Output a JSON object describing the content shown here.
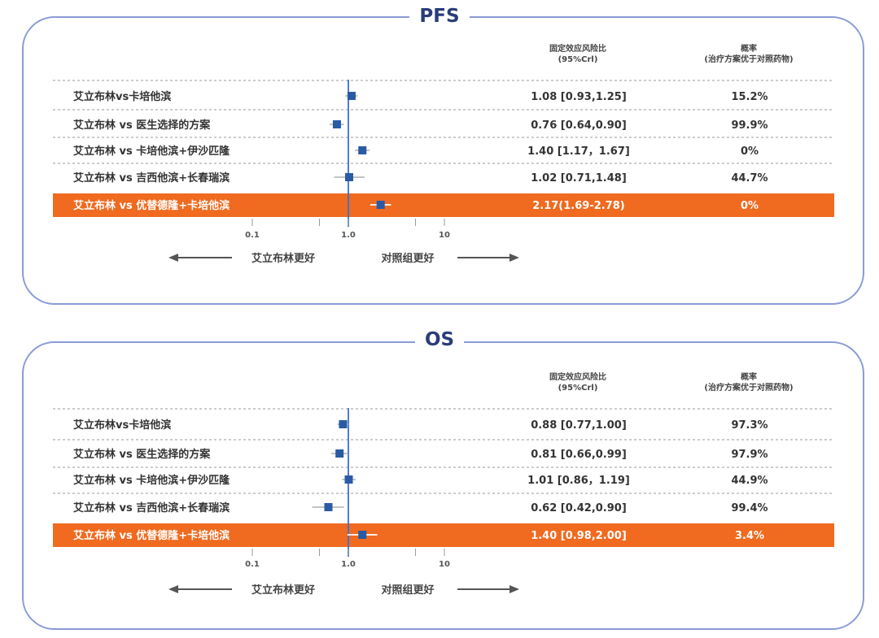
{
  "header": {
    "col_hr_line1": "固定效应风险比",
    "col_hr_line2": "(95%Crl)",
    "col_prob_line1": "概率",
    "col_prob_line2": "(治疗方案优于对照药物)"
  },
  "axis": {
    "ticks": [
      "0.1",
      "1.0",
      "10"
    ],
    "left_label": "艾立布林更好",
    "right_label": "对照组更好"
  },
  "colors": {
    "highlight": "#f06a1f",
    "marker": "#2a5aa4",
    "refline": "#3d6fcf",
    "border": "#8a9bd6",
    "title": "#2a3d7a"
  },
  "chart_data": [
    {
      "type": "forest",
      "title": "PFS",
      "scale": "log",
      "xlim": [
        0.1,
        10
      ],
      "reference": 1.0,
      "rows": [
        {
          "label": "艾立布林vs卡培他滨",
          "hr": 1.08,
          "lo": 0.93,
          "hi": 1.25,
          "ci_text": "1.08 [0.93,1.25]",
          "prob": "15.2%",
          "highlight": false
        },
        {
          "label": "艾立布林 vs 医生选择的方案",
          "hr": 0.76,
          "lo": 0.64,
          "hi": 0.9,
          "ci_text": "0.76 [0.64,0.90]",
          "prob": "99.9%",
          "highlight": false
        },
        {
          "label": "艾立布林 vs 卡培他滨+伊沙匹隆",
          "hr": 1.4,
          "lo": 1.17,
          "hi": 1.67,
          "ci_text": "1.40 [1.17，1.67]",
          "prob": "0%",
          "highlight": false
        },
        {
          "label": "艾立布林 vs 吉西他滨+长春瑞滨",
          "hr": 1.02,
          "lo": 0.71,
          "hi": 1.48,
          "ci_text": "1.02 [0.71,1.48]",
          "prob": "44.7%",
          "highlight": false
        },
        {
          "label": "艾立布林 vs 优替德隆+卡培他滨",
          "hr": 2.17,
          "lo": 1.69,
          "hi": 2.78,
          "ci_text": "2.17(1.69-2.78)",
          "prob": "0%",
          "highlight": true
        }
      ]
    },
    {
      "type": "forest",
      "title": "OS",
      "scale": "log",
      "xlim": [
        0.1,
        10
      ],
      "reference": 1.0,
      "rows": [
        {
          "label": "艾立布林vs卡培他滨",
          "hr": 0.88,
          "lo": 0.77,
          "hi": 1.0,
          "ci_text": "0.88 [0.77,1.00]",
          "prob": "97.3%",
          "highlight": false
        },
        {
          "label": "艾立布林 vs 医生选择的方案",
          "hr": 0.81,
          "lo": 0.66,
          "hi": 0.99,
          "ci_text": "0.81 [0.66,0.99]",
          "prob": "97.9%",
          "highlight": false
        },
        {
          "label": "艾立布林 vs 卡培他滨+伊沙匹隆",
          "hr": 1.01,
          "lo": 0.86,
          "hi": 1.19,
          "ci_text": "1.01 [0.86，1.19]",
          "prob": "44.9%",
          "highlight": false
        },
        {
          "label": "艾立布林 vs 吉西他滨+长春瑞滨",
          "hr": 0.62,
          "lo": 0.42,
          "hi": 0.9,
          "ci_text": "0.62 [0.42,0.90]",
          "prob": "99.4%",
          "highlight": false
        },
        {
          "label": "艾立布林 vs 优替德隆+卡培他滨",
          "hr": 1.4,
          "lo": 0.98,
          "hi": 2.0,
          "ci_text": "1.40 [0.98,2.00]",
          "prob": "3.4%",
          "highlight": true
        }
      ]
    }
  ]
}
